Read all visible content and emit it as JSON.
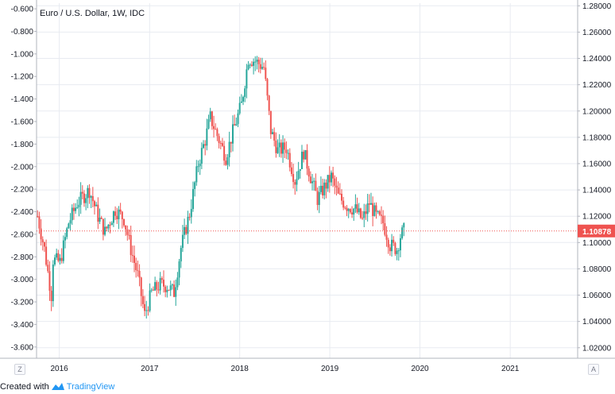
{
  "chart_data": {
    "type": "candlestick",
    "title": "Euro / U.S. Dollar, 1W, IDC",
    "last_price_label": "1.10878",
    "left_axis": {
      "ticks": [
        "-0.600",
        "-0.800",
        "-1.000",
        "-1.200",
        "-1.400",
        "-1.600",
        "-1.800",
        "-2.000",
        "-2.200",
        "-2.400",
        "-2.600",
        "-2.800",
        "-3.000",
        "-3.200",
        "-3.400",
        "-3.600"
      ],
      "range": [
        -3.7,
        -0.55
      ]
    },
    "right_axis": {
      "ticks": [
        "1.28000",
        "1.26000",
        "1.24000",
        "1.22000",
        "1.20000",
        "1.18000",
        "1.16000",
        "1.14000",
        "1.12000",
        "1.10000",
        "1.08000",
        "1.06000",
        "1.04000",
        "1.02000"
      ],
      "range": [
        1.012,
        1.282
      ]
    },
    "x_axis": {
      "ticks": [
        "2016",
        "2017",
        "2018",
        "2019",
        "2020",
        "2021"
      ],
      "range": [
        "2015-10-01",
        "2021-10-01"
      ]
    },
    "colors": {
      "up": "#26a69a",
      "down": "#ef5350",
      "last_price": "#ef5350",
      "grid": "#e8ebf1"
    },
    "grid": true,
    "series": [
      {
        "kind": "close_path",
        "points": [
          [
            "2015-10-05",
            1.12
          ],
          [
            "2015-11-02",
            1.095
          ],
          [
            "2015-11-30",
            1.06
          ],
          [
            "2015-12-07",
            1.087
          ],
          [
            "2016-01-04",
            1.085
          ],
          [
            "2016-02-08",
            1.115
          ],
          [
            "2016-03-14",
            1.13
          ],
          [
            "2016-05-02",
            1.14
          ],
          [
            "2016-06-06",
            1.12
          ],
          [
            "2016-07-04",
            1.108
          ],
          [
            "2016-08-15",
            1.125
          ],
          [
            "2016-09-19",
            1.118
          ],
          [
            "2016-10-17",
            1.095
          ],
          [
            "2016-11-14",
            1.075
          ],
          [
            "2016-12-12",
            1.045
          ],
          [
            "2017-01-09",
            1.062
          ],
          [
            "2017-02-13",
            1.068
          ],
          [
            "2017-03-13",
            1.067
          ],
          [
            "2017-04-10",
            1.062
          ],
          [
            "2017-05-08",
            1.096
          ],
          [
            "2017-06-12",
            1.122
          ],
          [
            "2017-07-17",
            1.16
          ],
          [
            "2017-08-14",
            1.178
          ],
          [
            "2017-09-04",
            1.195
          ],
          [
            "2017-10-09",
            1.178
          ],
          [
            "2017-11-06",
            1.165
          ],
          [
            "2017-12-04",
            1.184
          ],
          [
            "2018-01-08",
            1.205
          ],
          [
            "2018-02-05",
            1.24
          ],
          [
            "2018-03-05",
            1.238
          ],
          [
            "2018-04-09",
            1.233
          ],
          [
            "2018-05-07",
            1.185
          ],
          [
            "2018-06-04",
            1.17
          ],
          [
            "2018-07-09",
            1.172
          ],
          [
            "2018-08-13",
            1.147
          ],
          [
            "2018-09-17",
            1.169
          ],
          [
            "2018-10-15",
            1.15
          ],
          [
            "2018-11-12",
            1.133
          ],
          [
            "2018-12-10",
            1.142
          ],
          [
            "2019-01-07",
            1.15
          ],
          [
            "2019-02-04",
            1.135
          ],
          [
            "2019-03-11",
            1.128
          ],
          [
            "2019-04-15",
            1.125
          ],
          [
            "2019-05-13",
            1.117
          ],
          [
            "2019-06-10",
            1.13
          ],
          [
            "2019-07-08",
            1.12
          ],
          [
            "2019-08-05",
            1.115
          ],
          [
            "2019-09-02",
            1.098
          ],
          [
            "2019-09-30",
            1.095
          ],
          [
            "2019-10-14",
            1.105
          ],
          [
            "2019-10-28",
            1.109
          ]
        ]
      }
    ]
  },
  "axis_badges": {
    "left": "Z",
    "right": "A"
  },
  "footer": {
    "prefix": "Created with",
    "brand": "TradingView"
  }
}
